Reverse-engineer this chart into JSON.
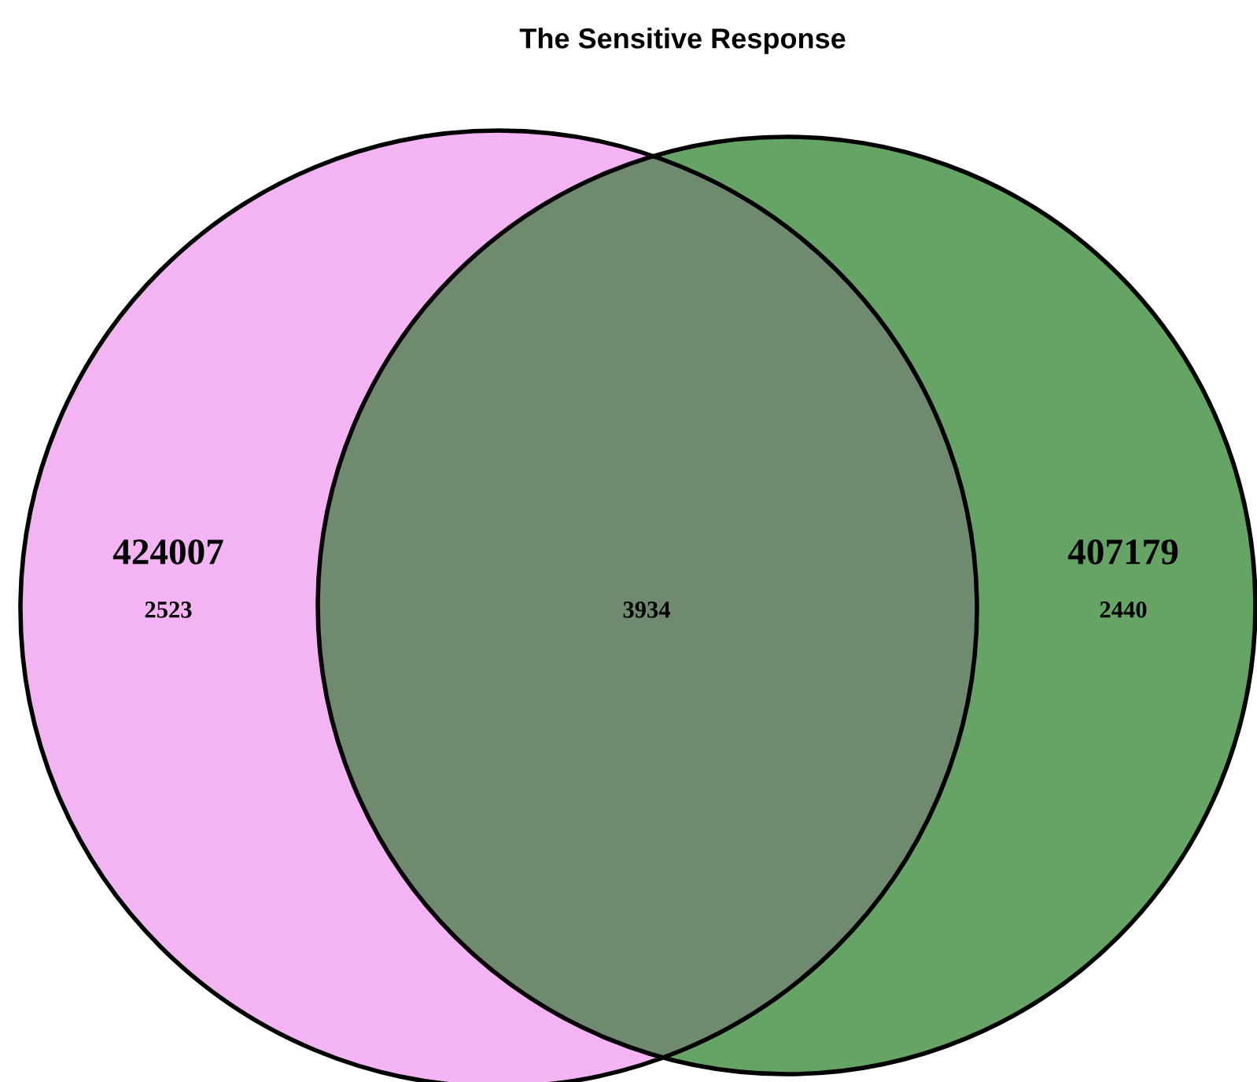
{
  "chart_data": {
    "type": "other",
    "title": "The Sensitive Response",
    "categories": [
      "424007",
      "407179"
    ],
    "values": [
      2523,
      2440
    ],
    "annotations": [
      "3934"
    ],
    "data_labels": true,
    "colors": [
      "#f4b4f4",
      "#66a466"
    ]
  }
}
